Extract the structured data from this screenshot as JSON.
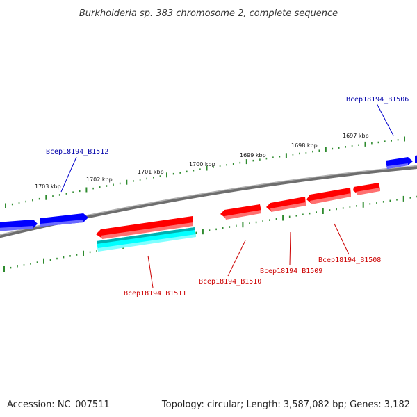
{
  "title": "Burkholderia sp. 383 chromosome 2, complete sequence",
  "footer": {
    "accession": "Accession: NC_007511",
    "summary": "Topology: circular; Length: 3,587,082 bp; Genes: 3,182"
  },
  "colors": {
    "backbone": "#808080",
    "tick": "#2e8b2e",
    "forward_gene": "#0000ff",
    "reverse_gene": "#ff0000",
    "highlight_gene": "#00ffff",
    "forward_label": "#0000aa",
    "reverse_label": "#cc0000"
  },
  "ticks": [
    {
      "label": "1697 kbp"
    },
    {
      "label": "1698 kbp"
    },
    {
      "label": "1699 kbp"
    },
    {
      "label": "1700 kbp"
    },
    {
      "label": "1701 kbp"
    },
    {
      "label": "1702 kbp"
    },
    {
      "label": "1703 kbp"
    }
  ],
  "genes": [
    {
      "name": "Bcep18194_B1506",
      "strand": "forward",
      "color_key": "forward_gene"
    },
    {
      "name": "Bcep18194_B1508",
      "strand": "reverse",
      "color_key": "reverse_gene"
    },
    {
      "name": "Bcep18194_B1509",
      "strand": "reverse",
      "color_key": "reverse_gene"
    },
    {
      "name": "Bcep18194_B1510",
      "strand": "reverse",
      "color_key": "reverse_gene"
    },
    {
      "name": "Bcep18194_B1511",
      "strand": "reverse",
      "color_key": "highlight_gene"
    },
    {
      "name": "Bcep18194_B1512",
      "strand": "forward",
      "color_key": "forward_gene"
    }
  ]
}
